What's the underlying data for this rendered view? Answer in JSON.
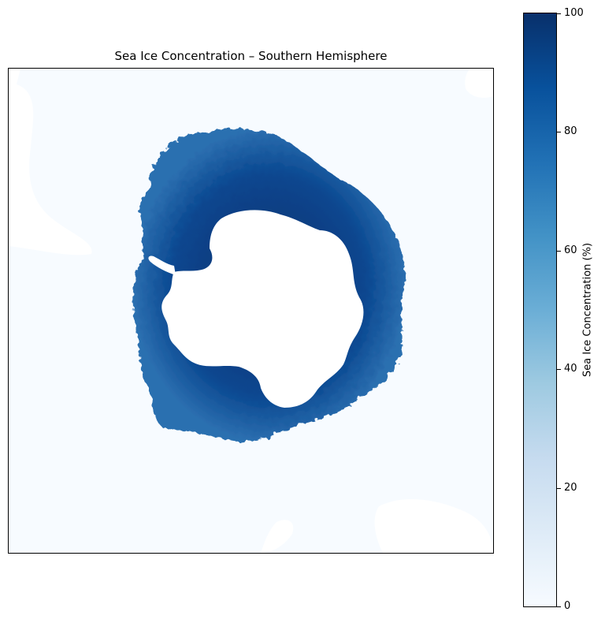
{
  "map": {
    "title": "Sea Ice Concentration – Southern Hemisphere",
    "region": "Antarctica",
    "variable": "Sea Ice Concentration",
    "colormap": {
      "low_color": "#f7fbff",
      "high_color": "#08306b",
      "name": "Blues"
    },
    "ocean_color": "#f7fbff",
    "land_color": "#ffffff"
  },
  "colorbar": {
    "label": "Sea Ice Concentration (%)",
    "ticks": [
      "0",
      "20",
      "40",
      "60",
      "80",
      "100"
    ],
    "range": [
      0,
      100
    ]
  }
}
